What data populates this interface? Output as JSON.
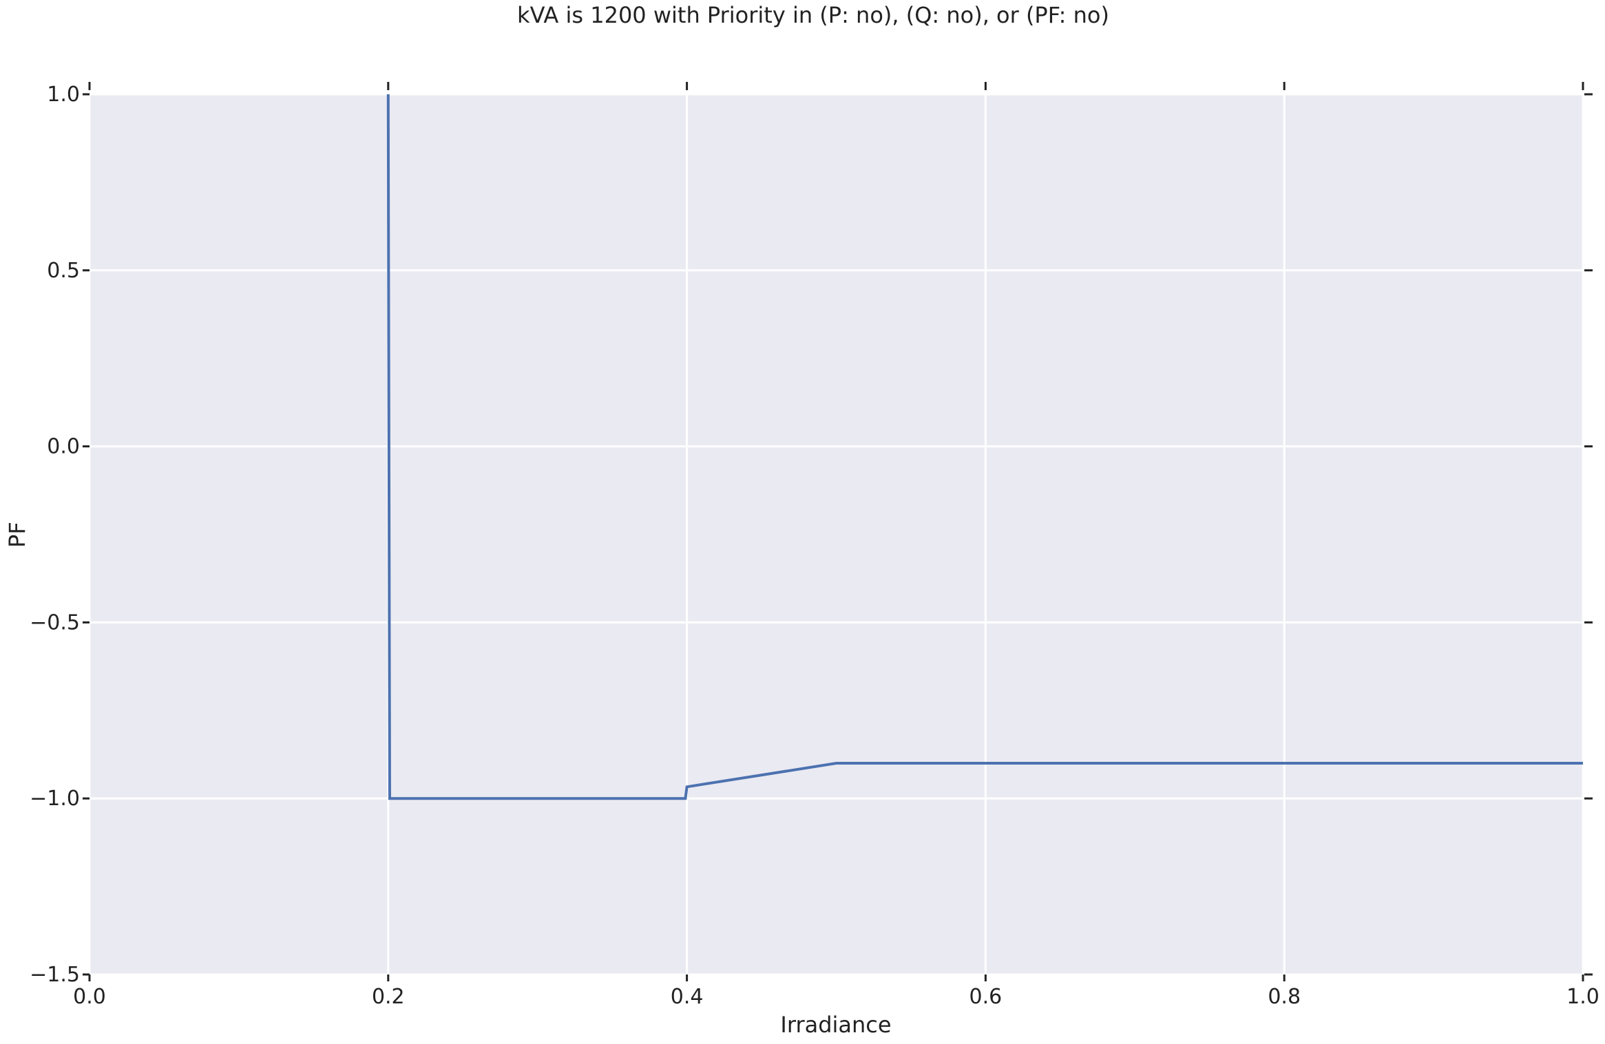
{
  "chart_data": {
    "type": "line",
    "title": "kVA is 1200 with Priority in (P: no), (Q: no), or (PF: no)",
    "xlabel": "Irradiance",
    "ylabel": "PF",
    "xlim": [
      0.0,
      1.0
    ],
    "ylim": [
      -1.5,
      1.0
    ],
    "xticks": [
      0.0,
      0.2,
      0.4,
      0.6,
      0.8,
      1.0
    ],
    "xtick_labels": [
      "0.0",
      "0.2",
      "0.4",
      "0.6",
      "0.8",
      "1.0"
    ],
    "yticks": [
      -1.5,
      -1.0,
      -0.5,
      0.0,
      0.5,
      1.0
    ],
    "ytick_labels": [
      "−1.5",
      "−1.0",
      "−0.5",
      "0.0",
      "0.5",
      "1.0"
    ],
    "grid": true,
    "colors": {
      "plot_background": "#eaeaf2",
      "grid": "#ffffff",
      "line": "#4c72b0"
    },
    "series": [
      {
        "x": [
          0.2,
          0.201,
          0.399,
          0.4,
          0.5,
          1.0
        ],
        "y": [
          1.0,
          -1.0,
          -1.0,
          -0.967,
          -0.9,
          -0.9
        ]
      }
    ]
  }
}
